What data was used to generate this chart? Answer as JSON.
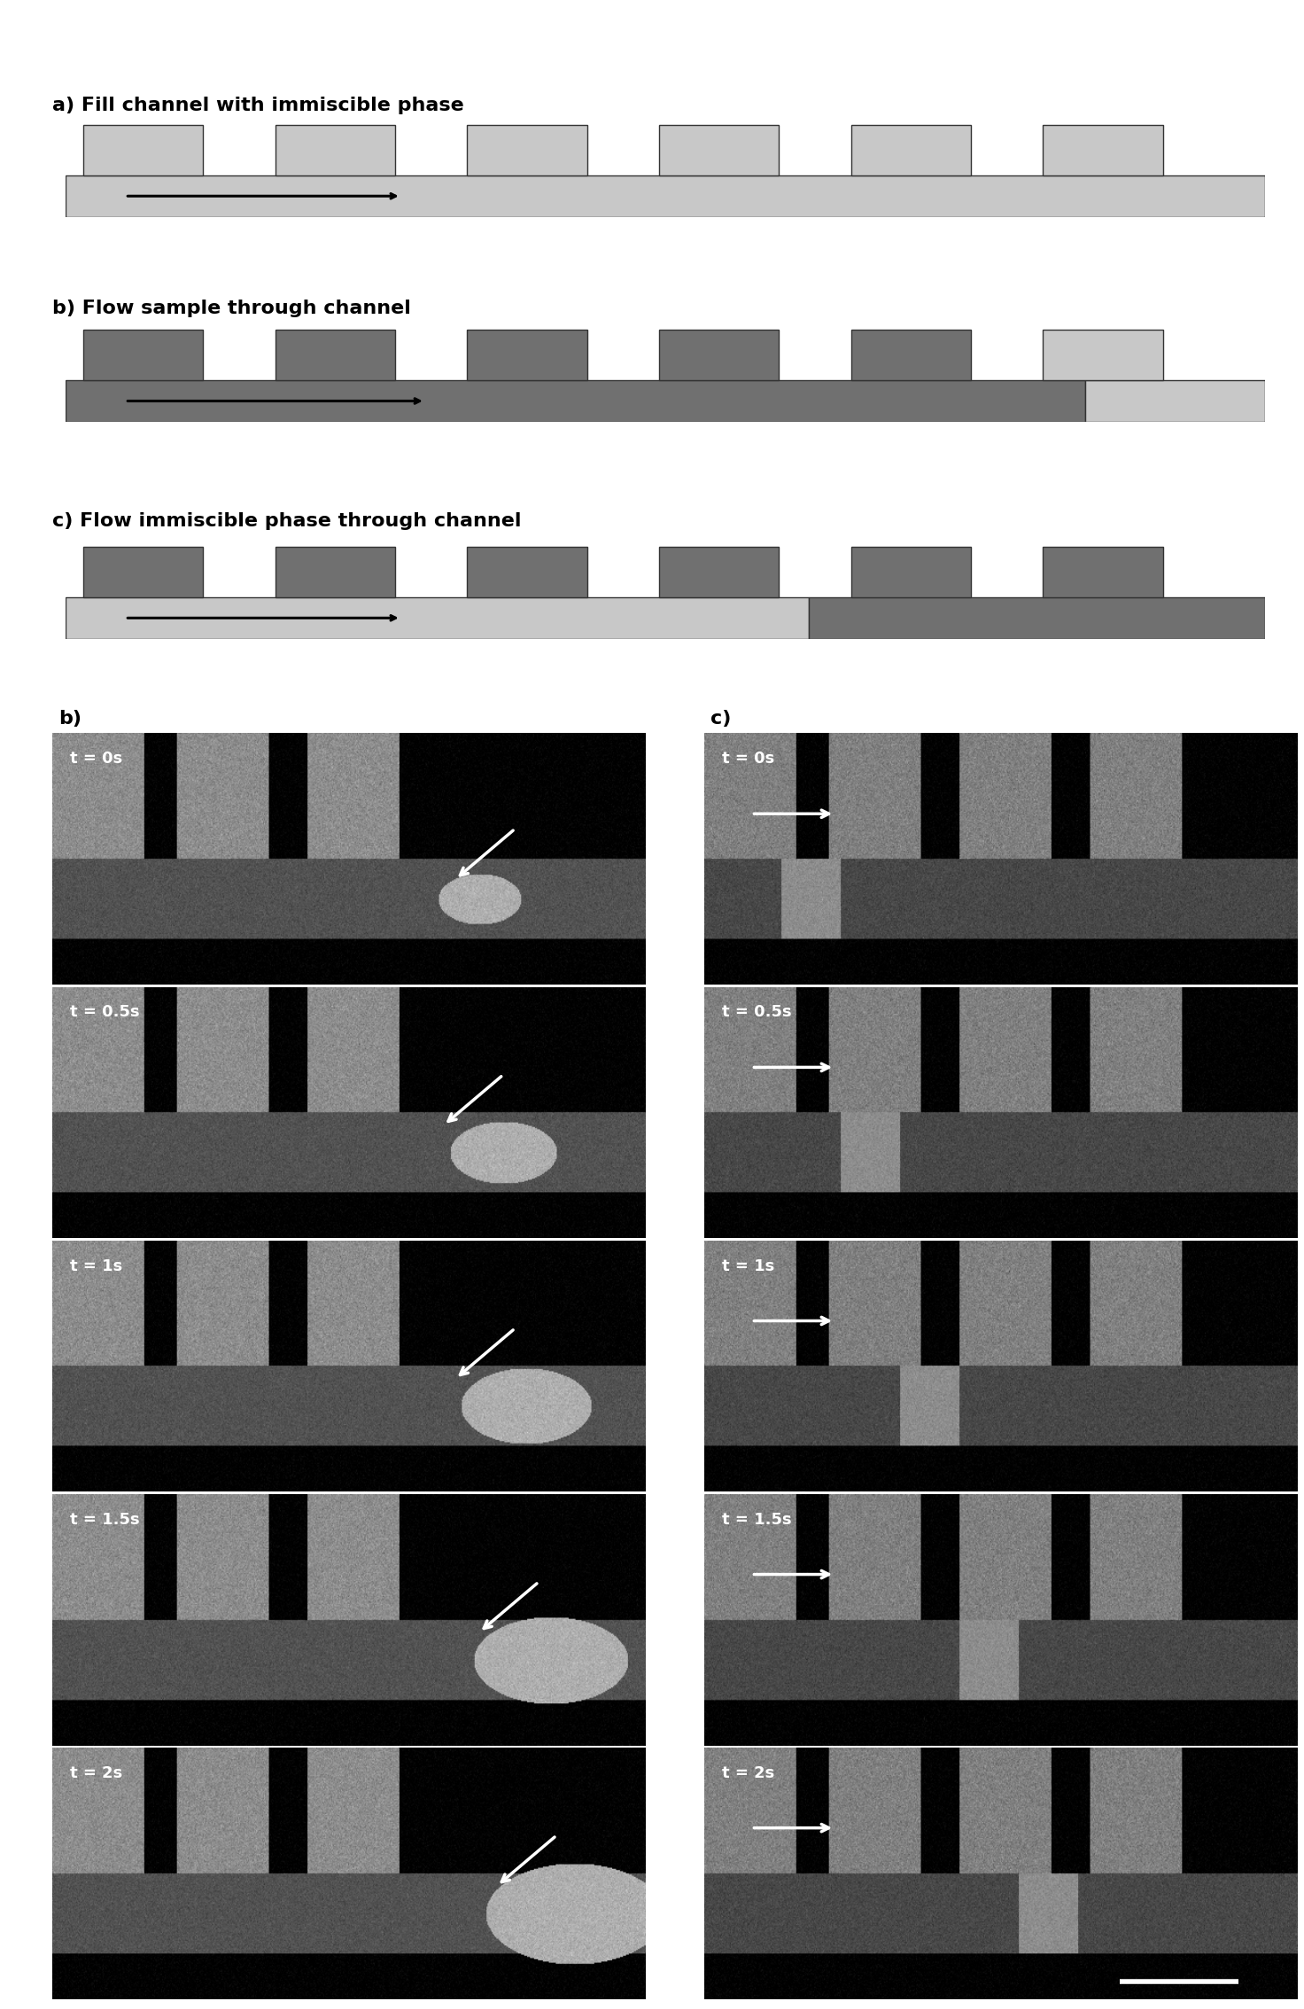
{
  "bg_color": "#ffffff",
  "label_a": "a) Fill channel with immiscible phase",
  "label_b_top": "b) Flow sample through channel",
  "label_c_top": "c) Flow immiscible phase through channel",
  "light_gray": "#c8c8c8",
  "dark_gray": "#696969",
  "time_labels": [
    "t = 0s",
    "t = 0.5s",
    "t = 1s",
    "t = 1.5s",
    "t = 2s"
  ],
  "schematic_a_channel": "#c8c8c8",
  "schematic_a_bumps": "#c8c8c8",
  "schematic_b_channel_left": "#707070",
  "schematic_b_channel_right": "#c8c8c8",
  "schematic_b_bumps_left": "#707070",
  "schematic_b_bumps_right_partial": "#c8c8c8",
  "schematic_c_channel_left": "#c8c8c8",
  "schematic_c_channel_right": "#707070",
  "schematic_c_bumps": "#707070"
}
